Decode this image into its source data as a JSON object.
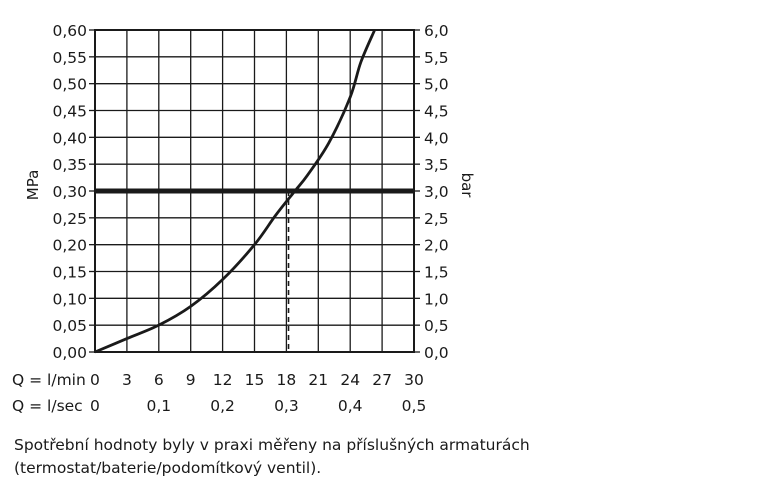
{
  "chart_data": {
    "type": "line",
    "ylabel_left": "MPa",
    "ylabel_right": "bar",
    "xaxis_rows": [
      {
        "label": "Q = l/min",
        "ticks": [
          "0",
          "3",
          "6",
          "9",
          "12",
          "15",
          "18",
          "21",
          "24",
          "27",
          "30"
        ]
      },
      {
        "label": "Q = l/sec",
        "ticks": [
          "0",
          "0,1",
          "0,2",
          "0,3",
          "0,4",
          "0,5"
        ]
      }
    ],
    "xlim": [
      0,
      30
    ],
    "ylim": [
      0,
      0.6
    ],
    "y_left_ticks": [
      "0,00",
      "0,05",
      "0,10",
      "0,15",
      "0,20",
      "0,25",
      "0,30",
      "0,35",
      "0,40",
      "0,45",
      "0,50",
      "0,55",
      "0,60"
    ],
    "y_right_ticks": [
      "0,0",
      "0,5",
      "1,0",
      "1,5",
      "2,0",
      "2,5",
      "3,0",
      "3,5",
      "4,0",
      "4,5",
      "5,0",
      "5,5",
      "6,0"
    ],
    "grid": true,
    "series": [
      {
        "x": [
          0,
          3,
          6,
          9,
          12,
          15,
          17,
          18.8,
          20,
          22,
          24,
          25,
          26.3
        ],
        "y": [
          0,
          0.025,
          0.05,
          0.085,
          0.135,
          0.2,
          0.255,
          0.3,
          0.33,
          0.39,
          0.475,
          0.54,
          0.6
        ]
      }
    ],
    "reference_line": {
      "y": 0.3
    },
    "marker": {
      "x": 18.2,
      "y": 0.3
    }
  },
  "caption": "Spotřební hodnoty byly v praxi měřeny na příslušných armaturách (termostat/baterie/podomítkový ventil)."
}
